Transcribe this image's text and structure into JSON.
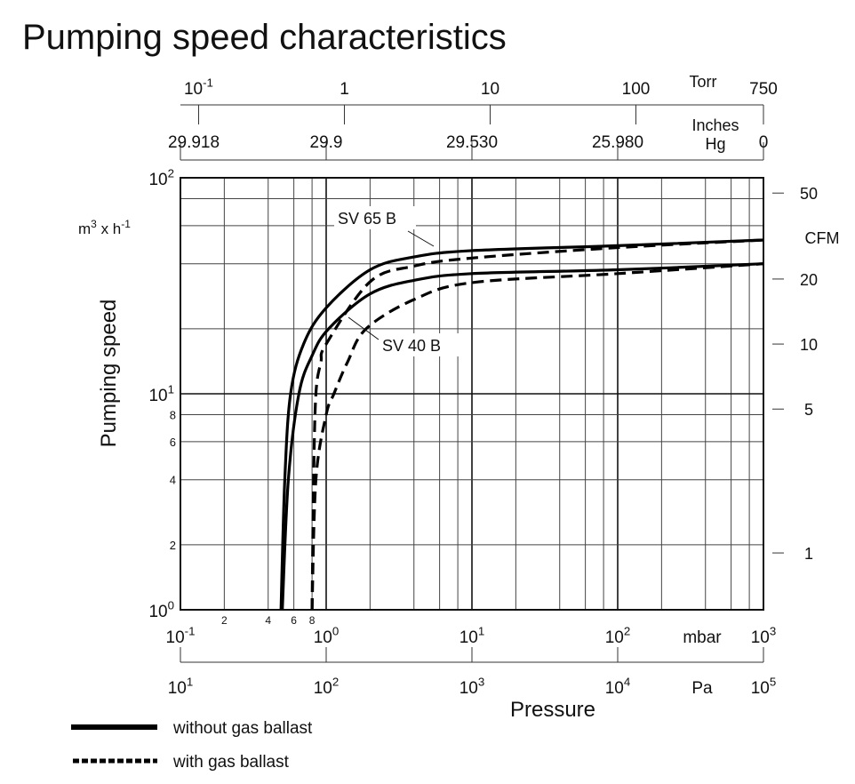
{
  "chart_data": {
    "type": "line",
    "title": "Pumping speed characteristics",
    "xlabel": "Pressure",
    "ylabel": "Pumping speed",
    "yunit": "m3 x h-1",
    "x_scale": "log",
    "y_scale": "log",
    "xlim": [
      0.1,
      1000
    ],
    "ylim": [
      1,
      100
    ],
    "grid": true,
    "x_axis": {
      "unit": "mbar",
      "major_ticks": [
        {
          "value": 0.1,
          "base": "10",
          "exp": "-1"
        },
        {
          "value": 1,
          "base": "10",
          "exp": "0"
        },
        {
          "value": 10,
          "base": "10",
          "exp": "1"
        },
        {
          "value": 100,
          "base": "10",
          "exp": "2"
        },
        {
          "value": 1000,
          "base": "10",
          "exp": "3"
        }
      ],
      "minor_labels": [
        {
          "value": 0.2,
          "label": "2"
        },
        {
          "value": 0.4,
          "label": "4"
        },
        {
          "value": 0.6,
          "label": "6"
        },
        {
          "value": 0.8,
          "label": "8"
        }
      ]
    },
    "pa_axis": {
      "unit": "Pa",
      "ticks": [
        {
          "mbar": 0.1,
          "base": "10",
          "exp": "1"
        },
        {
          "mbar": 1,
          "base": "10",
          "exp": "2"
        },
        {
          "mbar": 10,
          "base": "10",
          "exp": "3"
        },
        {
          "mbar": 100,
          "base": "10",
          "exp": "4"
        },
        {
          "mbar": 1000,
          "base": "10",
          "exp": "5"
        }
      ]
    },
    "torr_axis": {
      "unit": "Torr",
      "ticks": [
        {
          "torr": 0.1,
          "base": "10",
          "exp": "-1"
        },
        {
          "torr": 1,
          "base": "1",
          "exp": ""
        },
        {
          "torr": 10,
          "base": "10",
          "exp": ""
        },
        {
          "torr": 100,
          "base": "100",
          "exp": ""
        },
        {
          "torr": 750,
          "base": "750",
          "exp": ""
        }
      ]
    },
    "inhg_axis": {
      "unit_line1": "Inches",
      "unit_line2": "Hg",
      "ticks": [
        {
          "mbar": 0.1,
          "label": "29.918"
        },
        {
          "mbar": 1,
          "label": "29.9"
        },
        {
          "mbar": 10,
          "label": "29.530"
        },
        {
          "mbar": 100,
          "label": "25.980"
        },
        {
          "mbar": 1000,
          "label": "0"
        }
      ]
    },
    "y_axis": {
      "major_ticks": [
        {
          "value": 1,
          "base": "10",
          "exp": "0"
        },
        {
          "value": 10,
          "base": "10",
          "exp": "1"
        },
        {
          "value": 100,
          "base": "10",
          "exp": "2"
        }
      ],
      "minor_labels": [
        {
          "value": 2,
          "label": "2"
        },
        {
          "value": 4,
          "label": "4"
        },
        {
          "value": 6,
          "label": "6"
        },
        {
          "value": 8,
          "label": "8"
        }
      ]
    },
    "cfm_axis": {
      "unit": "CFM",
      "m3h_per_cfm": 1.699,
      "ticks": [
        1,
        5,
        10,
        20,
        50
      ]
    },
    "series": [
      {
        "name": "SV 65 B",
        "style": "solid",
        "x": [
          0.49,
          0.52,
          0.57,
          0.7,
          1,
          2,
          4,
          10,
          100,
          1000
        ],
        "y": [
          1,
          4,
          10,
          17,
          25,
          37.5,
          43,
          46,
          48.5,
          51.5
        ]
      },
      {
        "name": "SV 65 B",
        "style": "dashed",
        "x": [
          0.8,
          0.82,
          0.85,
          0.92,
          1,
          2,
          4,
          10,
          100,
          1000
        ],
        "y": [
          1,
          4,
          10,
          14,
          17,
          33,
          39,
          42.5,
          47.5,
          51.5
        ]
      },
      {
        "name": "SV 40 B",
        "style": "solid",
        "x": [
          0.5,
          0.55,
          0.65,
          0.8,
          1.04,
          2,
          4,
          10,
          100,
          1000
        ],
        "y": [
          1,
          4,
          10,
          15,
          20,
          29,
          33.5,
          36,
          37.5,
          40
        ]
      },
      {
        "name": "SV 40 B",
        "style": "dashed",
        "x": [
          0.8,
          0.85,
          1.0,
          1.13,
          1.4,
          1.88,
          4,
          10,
          100,
          1000
        ],
        "y": [
          1,
          4,
          8,
          10,
          14,
          20,
          27.3,
          32.7,
          36,
          40
        ]
      }
    ],
    "annotations": [
      {
        "text": "SV 65 B",
        "target": "SV 65 B"
      },
      {
        "text": "SV 40 B",
        "target": "SV 40 B"
      }
    ],
    "legend": {
      "placement": "bottom-left",
      "entries": [
        {
          "label": "without gas ballast",
          "style": "solid"
        },
        {
          "label": "with gas ballast",
          "style": "dashed"
        }
      ]
    },
    "colors": {
      "line": "#000000",
      "grid": "#444444"
    }
  }
}
